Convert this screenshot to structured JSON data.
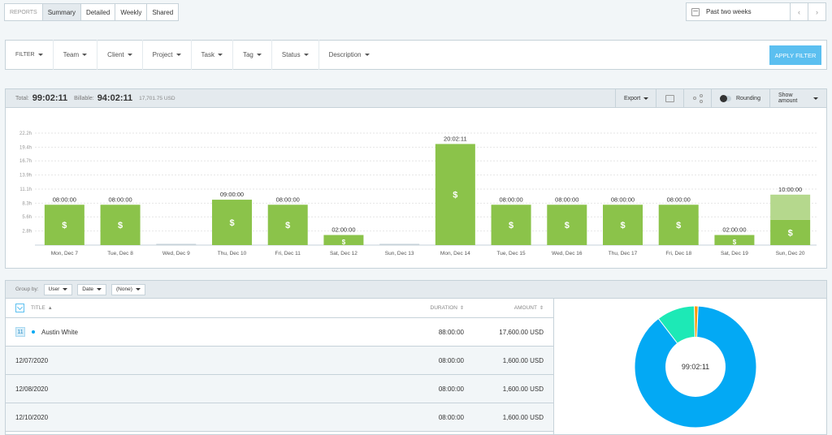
{
  "tabs": {
    "label": "REPORTS",
    "items": [
      "Summary",
      "Detailed",
      "Weekly",
      "Shared"
    ],
    "active": "Summary"
  },
  "date_range": {
    "label": "Past two weeks",
    "prev": "‹",
    "next": "›"
  },
  "filters": {
    "items": [
      "FILTER",
      "Team",
      "Client",
      "Project",
      "Task",
      "Tag",
      "Status",
      "Description"
    ],
    "apply": "APPLY FILTER"
  },
  "totals": {
    "total_label": "Total:",
    "total": "99:02:11",
    "billable_label": "Billable:",
    "billable": "94:02:11",
    "amount": "17,701.75 USD"
  },
  "chart_header": {
    "export": "Export",
    "rounding": "Rounding",
    "show_amount": "Show amount"
  },
  "chart_data": {
    "type": "bar",
    "y_ticks": [
      "22.2h",
      "19.4h",
      "16.7h",
      "13.9h",
      "11.1h",
      "8.3h",
      "5.6h",
      "2.8h"
    ],
    "y_tick_values": [
      22.2,
      19.4,
      16.7,
      13.9,
      11.1,
      8.3,
      5.6,
      2.8
    ],
    "ylim": [
      0,
      22.2
    ],
    "categories": [
      "Mon, Dec 7",
      "Tue, Dec 8",
      "Wed, Dec 9",
      "Thu, Dec 10",
      "Fri, Dec 11",
      "Sat, Dec 12",
      "Sun, Dec 13",
      "Mon, Dec 14",
      "Tue, Dec 15",
      "Wed, Dec 16",
      "Thu, Dec 17",
      "Fri, Dec 18",
      "Sat, Dec 19",
      "Sun, Dec 20"
    ],
    "labels": [
      "08:00:00",
      "08:00:00",
      "",
      "09:00:00",
      "08:00:00",
      "02:00:00",
      "",
      "20:02:11",
      "08:00:00",
      "08:00:00",
      "08:00:00",
      "08:00:00",
      "02:00:00",
      "10:00:00"
    ],
    "series": [
      {
        "values": [
          8,
          8,
          0,
          9,
          8,
          2,
          0,
          20.04,
          8,
          8,
          8,
          8,
          2,
          5
        ]
      },
      {
        "values": [
          0,
          0,
          0,
          0,
          0,
          0,
          0,
          0,
          0,
          0,
          0,
          0,
          0,
          5
        ]
      }
    ],
    "billable_symbol": "$",
    "colors": {
      "billable": "#8bc34a",
      "nonbillable": "#b5d88d",
      "empty": "#c6d2d9"
    },
    "grid": true
  },
  "group": {
    "label": "Group by:",
    "selects": [
      "User",
      "Date",
      "(None)"
    ]
  },
  "table": {
    "headers": {
      "title": "TITLE",
      "duration": "DURATION",
      "amount": "AMOUNT"
    },
    "user": {
      "count": "11",
      "name": "Austin White",
      "duration": "88:00:00",
      "amount": "17,600.00 USD"
    },
    "rows": [
      {
        "title": "12/07/2020",
        "duration": "08:00:00",
        "amount": "1,600.00 USD"
      },
      {
        "title": "12/08/2020",
        "duration": "08:00:00",
        "amount": "1,600.00 USD"
      },
      {
        "title": "12/10/2020",
        "duration": "08:00:00",
        "amount": "1,600.00 USD"
      }
    ]
  },
  "pie": {
    "center_label": "99:02:11",
    "slices": [
      {
        "value": 88.0,
        "color": "#03a9f4"
      },
      {
        "value": 10.0,
        "color": "#1de9b6"
      },
      {
        "value": 1.0,
        "color": "#ff9800"
      }
    ]
  }
}
